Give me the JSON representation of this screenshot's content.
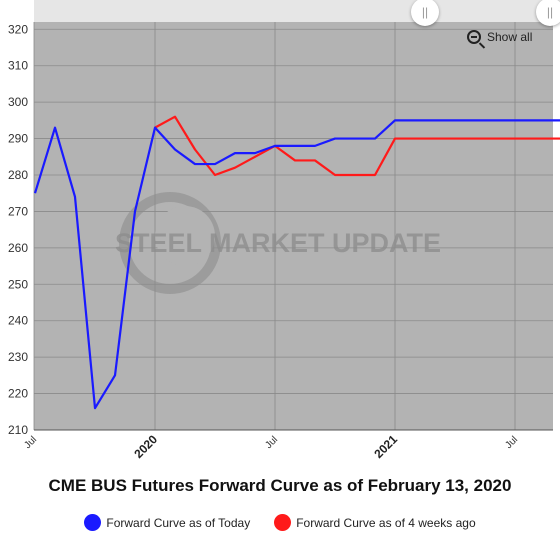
{
  "chart_data": {
    "type": "line",
    "title": "CME BUS Futures Forward Curve as of February 13, 2020",
    "y_ticks": [
      210,
      220,
      230,
      240,
      250,
      260,
      270,
      280,
      290,
      300,
      310,
      320
    ],
    "ylim": [
      210,
      322
    ],
    "x_ticks": [
      {
        "label": "Jul",
        "major": false,
        "month_index": 0
      },
      {
        "label": "2020",
        "major": true,
        "month_index": 6
      },
      {
        "label": "Jul",
        "major": false,
        "month_index": 12
      },
      {
        "label": "2021",
        "major": true,
        "month_index": 18
      },
      {
        "label": "Jul",
        "major": false,
        "month_index": 24
      }
    ],
    "x_months": [
      "2019-07",
      "2019-08",
      "2019-09",
      "2019-10",
      "2019-11",
      "2019-12",
      "2020-01",
      "2020-02",
      "2020-03",
      "2020-04",
      "2020-05",
      "2020-06",
      "2020-07",
      "2020-08",
      "2020-09",
      "2020-10",
      "2020-11",
      "2020-12",
      "2021-01",
      "2021-02",
      "2021-03",
      "2021-04",
      "2021-05",
      "2021-06",
      "2021-07",
      "2021-08",
      "2021-09",
      "2021-10"
    ],
    "xlim_months": [
      "2019-07",
      "2021-10"
    ],
    "grid": true,
    "watermark": "STEEL MARKET UPDATE",
    "series": [
      {
        "name": "Forward Curve as of Today",
        "color": "#1a1aff",
        "x": [
          "2019-07",
          "2019-08",
          "2019-09",
          "2019-10",
          "2019-11",
          "2019-12",
          "2020-01",
          "2020-02",
          "2020-03",
          "2020-04",
          "2020-05",
          "2020-06",
          "2020-07",
          "2020-08",
          "2020-09",
          "2020-10",
          "2020-11",
          "2020-12",
          "2021-01",
          "2021-02",
          "2021-03",
          "2021-04",
          "2021-05",
          "2021-06",
          "2021-07",
          "2021-08",
          "2021-09",
          "2021-10"
        ],
        "values": [
          275,
          293,
          274,
          216,
          225,
          270,
          293,
          287,
          283,
          283,
          286,
          286,
          288,
          288,
          288,
          290,
          290,
          290,
          295,
          295,
          295,
          295,
          295,
          295,
          295,
          295,
          295,
          295
        ]
      },
      {
        "name": "Forward Curve as of 4 weeks ago",
        "color": "#ff1a1a",
        "x": [
          "2020-01",
          "2020-02",
          "2020-03",
          "2020-04",
          "2020-05",
          "2020-06",
          "2020-07",
          "2020-08",
          "2020-09",
          "2020-10",
          "2020-11",
          "2020-12",
          "2021-01",
          "2021-02",
          "2021-03",
          "2021-04",
          "2021-05",
          "2021-06",
          "2021-07",
          "2021-08",
          "2021-09",
          "2021-10"
        ],
        "values": [
          293,
          296,
          287,
          280,
          282,
          285,
          288,
          284,
          284,
          280,
          280,
          280,
          290,
          290,
          290,
          290,
          290,
          290,
          290,
          290,
          290,
          290
        ]
      }
    ]
  },
  "controls": {
    "show_all_label": "Show all"
  },
  "legend": [
    {
      "label": "Forward Curve as of Today",
      "color": "#1a1aff"
    },
    {
      "label": "Forward Curve as of 4 weeks ago",
      "color": "#ff1a1a"
    }
  ]
}
